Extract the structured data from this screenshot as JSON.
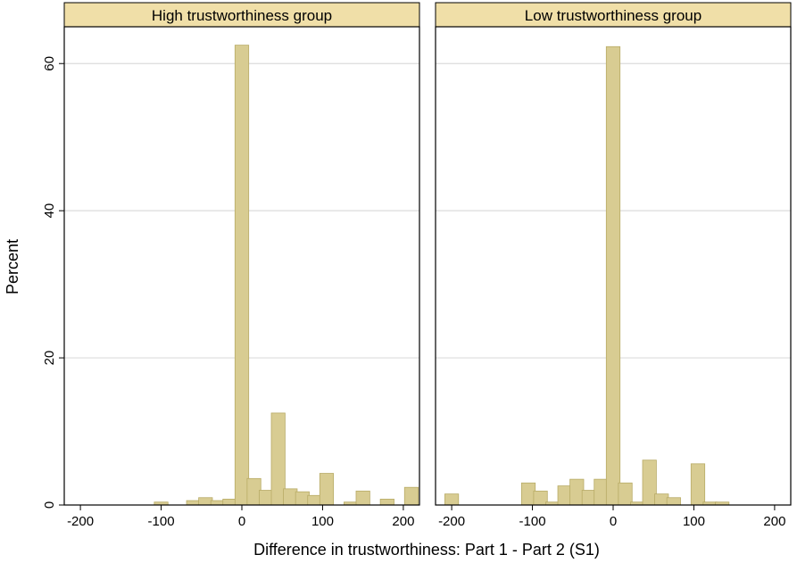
{
  "chart_data": {
    "type": "bar",
    "xlabel": "Difference in trustworthiness: Part 1 - Part 2 (S1)",
    "ylabel": "Percent",
    "ylim": [
      0,
      65
    ],
    "yticks": [
      0,
      20,
      40,
      60
    ],
    "xlim": [
      -220,
      220
    ],
    "xticks": [
      -200,
      -100,
      0,
      100,
      200
    ],
    "bin_width": 20,
    "grid": true,
    "colors": {
      "bar_fill": "#d8cc92",
      "bar_stroke": "#b8ab66",
      "strip_fill": "#f0dfa8",
      "grid": "#dcdcdc"
    },
    "panels": [
      {
        "title": "High trustworthiness group",
        "bars": [
          {
            "x": -100,
            "y": 0.4
          },
          {
            "x": -60,
            "y": 0.6
          },
          {
            "x": -45,
            "y": 1.0
          },
          {
            "x": -30,
            "y": 0.6
          },
          {
            "x": -15,
            "y": 0.8
          },
          {
            "x": 0,
            "y": 62.5
          },
          {
            "x": 15,
            "y": 3.6
          },
          {
            "x": 30,
            "y": 2.0
          },
          {
            "x": 45,
            "y": 12.5
          },
          {
            "x": 60,
            "y": 2.2
          },
          {
            "x": 75,
            "y": 1.8
          },
          {
            "x": 90,
            "y": 1.3
          },
          {
            "x": 105,
            "y": 4.3
          },
          {
            "x": 135,
            "y": 0.4
          },
          {
            "x": 150,
            "y": 1.9
          },
          {
            "x": 180,
            "y": 0.8
          },
          {
            "x": 210,
            "y": 2.4
          }
        ]
      },
      {
        "title": "Low trustworthiness group",
        "bars": [
          {
            "x": -200,
            "y": 1.5
          },
          {
            "x": -105,
            "y": 3.0
          },
          {
            "x": -90,
            "y": 1.9
          },
          {
            "x": -75,
            "y": 0.4
          },
          {
            "x": -60,
            "y": 2.6
          },
          {
            "x": -45,
            "y": 3.5
          },
          {
            "x": -30,
            "y": 2.0
          },
          {
            "x": -15,
            "y": 3.5
          },
          {
            "x": 0,
            "y": 62.3
          },
          {
            "x": 15,
            "y": 3.0
          },
          {
            "x": 30,
            "y": 0.4
          },
          {
            "x": 45,
            "y": 6.1
          },
          {
            "x": 60,
            "y": 1.5
          },
          {
            "x": 75,
            "y": 1.0
          },
          {
            "x": 105,
            "y": 5.6
          },
          {
            "x": 120,
            "y": 0.4
          },
          {
            "x": 135,
            "y": 0.4
          }
        ]
      }
    ]
  }
}
